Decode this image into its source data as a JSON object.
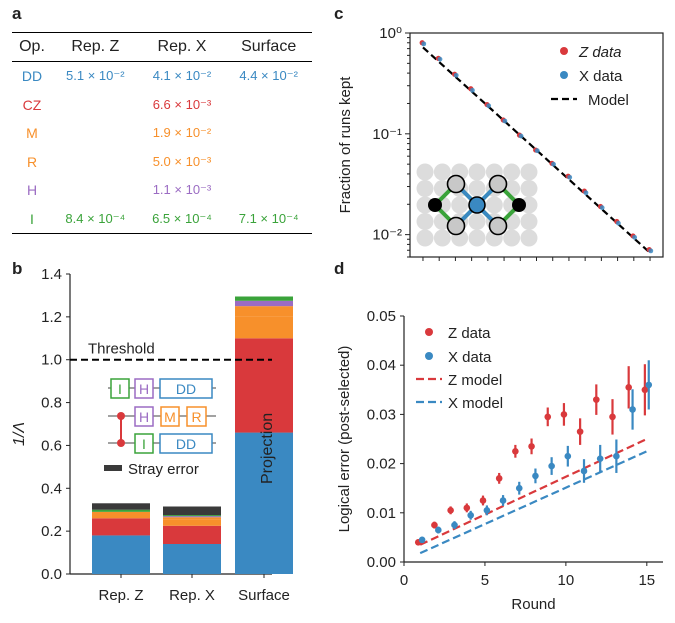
{
  "panels": {
    "a": "a",
    "b": "b",
    "c": "c",
    "d": "d"
  },
  "colors": {
    "DD": "#3a89c2",
    "CZ": "#d9393c",
    "M": "#f7902b",
    "R": "#f7902b",
    "H": "#9b6cc3",
    "I": "#3aa33a",
    "Stray": "#3a3a3a"
  },
  "table": {
    "headers": [
      "Op.",
      "Rep. Z",
      "Rep. X",
      "Surface"
    ],
    "rows": [
      {
        "op": "DD",
        "rep_z": "5.1 × 10⁻²",
        "rep_x": "4.1 × 10⁻²",
        "surface": "4.4 × 10⁻²"
      },
      {
        "op": "CZ",
        "rep_z": "",
        "rep_x": "6.6 × 10⁻³",
        "surface": ""
      },
      {
        "op": "M",
        "rep_z": "",
        "rep_x": "1.9 × 10⁻²",
        "surface": ""
      },
      {
        "op": "R",
        "rep_z": "",
        "rep_x": "5.0 × 10⁻³",
        "surface": ""
      },
      {
        "op": "H",
        "rep_z": "",
        "rep_x": "1.1 × 10⁻³",
        "surface": ""
      },
      {
        "op": "I",
        "rep_z": "8.4 × 10⁻⁴",
        "rep_x": "6.5 × 10⁻⁴",
        "surface": "7.1 × 10⁻⁴"
      }
    ]
  },
  "chart_data": [
    {
      "type": "bar",
      "panel": "b",
      "ylabel": "1/Λ",
      "ylim": [
        0,
        1.4
      ],
      "yticks": [
        "0.0",
        "0.2",
        "0.4",
        "0.6",
        "0.8",
        "1.0",
        "1.2",
        "1.4"
      ],
      "categories": [
        "Rep. Z",
        "Rep. X",
        "Surface"
      ],
      "stack_order": [
        "DD",
        "CZ",
        "M",
        "R",
        "H",
        "I",
        "Stray"
      ],
      "series": [
        {
          "name": "DD",
          "values": [
            0.18,
            0.14,
            0.66
          ]
        },
        {
          "name": "CZ",
          "values": [
            0.08,
            0.085,
            0.44
          ]
        },
        {
          "name": "M",
          "values": [
            0.02,
            0.03,
            0.1
          ]
        },
        {
          "name": "R",
          "values": [
            0.01,
            0.01,
            0.05
          ]
        },
        {
          "name": "H",
          "values": [
            0.0,
            0.005,
            0.025
          ]
        },
        {
          "name": "I",
          "values": [
            0.01,
            0.005,
            0.02
          ]
        },
        {
          "name": "Stray",
          "values": [
            0.03,
            0.04,
            0.0
          ]
        }
      ],
      "threshold": {
        "label": "Threshold",
        "value": 1.0
      },
      "annotation": "Projection",
      "legend": {
        "stray_label": "Stray error",
        "gates": [
          "I",
          "H",
          "DD",
          "H",
          "M",
          "R",
          "I",
          "DD"
        ]
      }
    },
    {
      "type": "scatter",
      "panel": "c",
      "ylabel": "Fraction of runs kept",
      "yscale": "log",
      "ylim": [
        0.006,
        1.0
      ],
      "ytick_labels": [
        "10⁰",
        "10⁻¹",
        "10⁻²"
      ],
      "x": [
        1,
        2,
        3,
        4,
        5,
        6,
        7,
        8,
        9,
        10,
        11,
        12,
        13,
        14,
        15
      ],
      "xlim": [
        0.2,
        15.8
      ],
      "series": [
        {
          "name": "Z data",
          "values": [
            0.8,
            0.56,
            0.39,
            0.28,
            0.195,
            0.137,
            0.097,
            0.069,
            0.051,
            0.038,
            0.027,
            0.019,
            0.0135,
            0.0097,
            0.0071
          ]
        },
        {
          "name": "X data",
          "values": [
            0.78,
            0.55,
            0.38,
            0.27,
            0.19,
            0.134,
            0.095,
            0.068,
            0.05,
            0.037,
            0.026,
            0.0185,
            0.013,
            0.0094,
            0.0069
          ]
        },
        {
          "name": "Model",
          "line": {
            "x": [
              1,
              15
            ],
            "y": [
              0.72,
              0.0066
            ]
          }
        }
      ],
      "legend": "top-right"
    },
    {
      "type": "scatter",
      "panel": "d",
      "xlabel": "Round",
      "ylabel": "Logical error (post-selected)",
      "xlim": [
        0,
        16
      ],
      "ylim": [
        0,
        0.05
      ],
      "xticks": [
        "0",
        "5",
        "10",
        "15"
      ],
      "yticks": [
        "0.00",
        "0.01",
        "0.02",
        "0.03",
        "0.04",
        "0.05"
      ],
      "series": [
        {
          "name": "Z data",
          "x": [
            1,
            2,
            3,
            4,
            5,
            6,
            7,
            8,
            9,
            10,
            11,
            12,
            13,
            14,
            15
          ],
          "y": [
            0.004,
            0.0075,
            0.0105,
            0.011,
            0.0125,
            0.017,
            0.0225,
            0.0235,
            0.0295,
            0.03,
            0.0265,
            0.033,
            0.0295,
            0.0355,
            0.035
          ],
          "err": [
            0.0006,
            0.0007,
            0.0008,
            0.0009,
            0.001,
            0.0011,
            0.0013,
            0.0016,
            0.0019,
            0.0023,
            0.0027,
            0.0031,
            0.0036,
            0.0043,
            0.0052
          ]
        },
        {
          "name": "X data",
          "x": [
            1,
            2,
            3,
            4,
            5,
            6,
            7,
            8,
            9,
            10,
            11,
            12,
            13,
            14,
            15
          ],
          "y": [
            0.0045,
            0.0065,
            0.0075,
            0.0095,
            0.0105,
            0.0125,
            0.015,
            0.0175,
            0.0195,
            0.0215,
            0.0185,
            0.021,
            0.0215,
            0.031,
            0.036
          ],
          "err": [
            0.0006,
            0.0007,
            0.0008,
            0.0009,
            0.001,
            0.0011,
            0.0013,
            0.0015,
            0.0018,
            0.0021,
            0.0024,
            0.0028,
            0.0034,
            0.0041,
            0.005
          ]
        },
        {
          "name": "Z model",
          "line": {
            "x": [
              1,
              15
            ],
            "y": [
              0.0035,
              0.025
            ]
          }
        },
        {
          "name": "X model",
          "line": {
            "x": [
              1,
              15
            ],
            "y": [
              0.0018,
              0.0225
            ]
          }
        }
      ],
      "legend": "top-left"
    }
  ]
}
